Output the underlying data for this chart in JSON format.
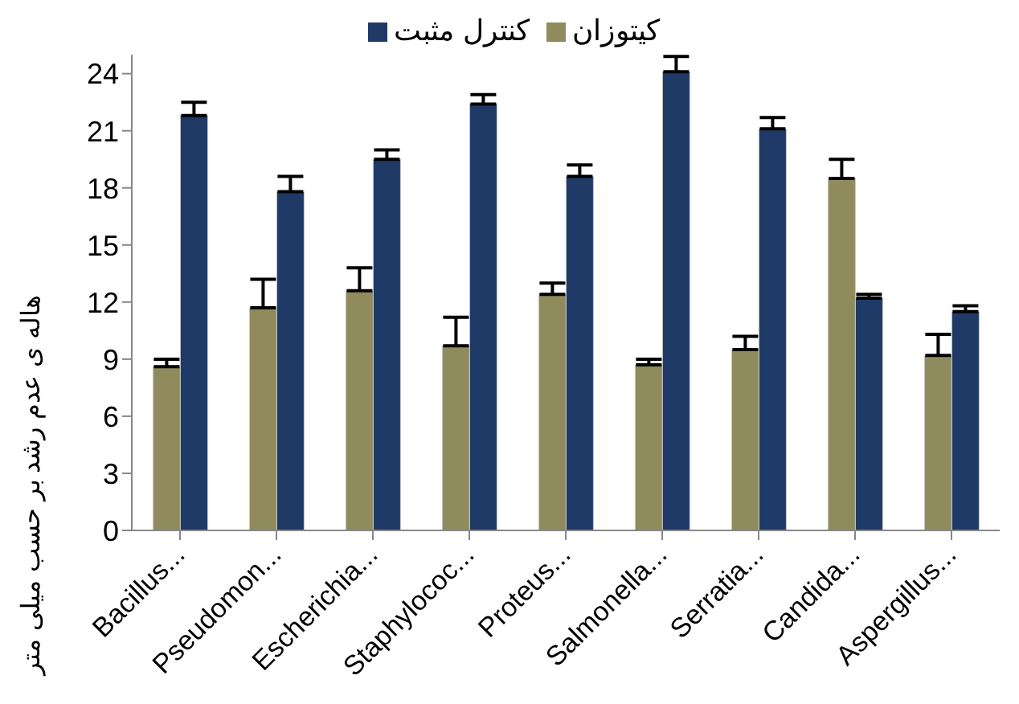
{
  "chart_data": {
    "type": "bar",
    "ylabel": "هاله ی عدم رشد بر حسب میلی متر",
    "categories": [
      "Bacillus...",
      "Pseudomon...",
      "Escherichia...",
      "Staphylococ...",
      "Proteus...",
      "Salmonella...",
      "Serratia...",
      "Candida...",
      "Aspergillus..."
    ],
    "series": [
      {
        "name": "کیتوزان",
        "color": "#8f8b5c",
        "values": [
          8.6,
          11.7,
          12.6,
          9.7,
          12.4,
          8.7,
          9.5,
          18.5,
          9.2
        ],
        "errors": [
          [
            8.6,
            9.0
          ],
          [
            11.7,
            13.2
          ],
          [
            12.6,
            13.8
          ],
          [
            9.7,
            11.2
          ],
          [
            12.4,
            13.0
          ],
          [
            8.7,
            9.0
          ],
          [
            9.5,
            10.2
          ],
          [
            18.5,
            19.5
          ],
          [
            9.2,
            10.3
          ]
        ]
      },
      {
        "name": "کنترل مثبت",
        "color": "#1f3a66",
        "values": [
          21.8,
          17.8,
          19.5,
          22.4,
          18.6,
          24.1,
          21.1,
          12.2,
          11.5
        ],
        "errors": [
          [
            21.8,
            22.5
          ],
          [
            17.8,
            18.6
          ],
          [
            19.5,
            20.0
          ],
          [
            22.4,
            22.9
          ],
          [
            18.6,
            19.2
          ],
          [
            24.1,
            24.9
          ],
          [
            21.1,
            21.7
          ],
          [
            12.2,
            12.4
          ],
          [
            11.5,
            11.8
          ]
        ]
      }
    ],
    "ylim": [
      0,
      25
    ],
    "yticks": [
      0,
      3,
      6,
      9,
      12,
      15,
      18,
      21,
      24
    ],
    "legend": "top"
  }
}
